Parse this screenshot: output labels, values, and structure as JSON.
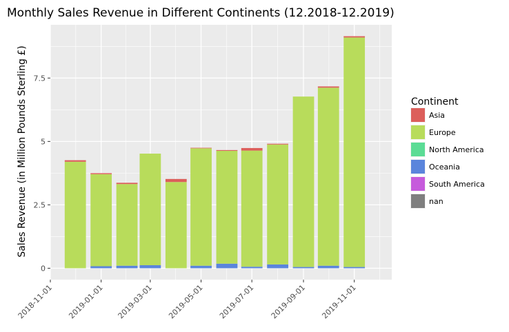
{
  "chart_data": {
    "type": "bar",
    "stacked": true,
    "title": "Monthly Sales Revenue in Different Continents (12.2018-12.2019)",
    "xlabel": "",
    "ylabel": "Sales Revenue (in Million Pounds Sterling £)",
    "y_ticks": [
      0,
      2.5,
      5,
      7.5
    ],
    "y_tick_labels": [
      "0",
      "2.5",
      "5",
      "7.5"
    ],
    "ylim": [
      -0.45,
      9.6
    ],
    "x_ticks": [
      "2018-11-01",
      "2019-01-01",
      "2019-03-01",
      "2019-05-01",
      "2019-07-01",
      "2019-09-01",
      "2019-11-01"
    ],
    "xlim": [
      "2018-11-01",
      "2019-12-16"
    ],
    "categories": [
      "2018-12-01",
      "2019-01-01",
      "2019-02-01",
      "2019-03-01",
      "2019-04-01",
      "2019-05-01",
      "2019-06-01",
      "2019-07-01",
      "2019-08-01",
      "2019-09-01",
      "2019-10-01",
      "2019-11-01"
    ],
    "series": [
      {
        "name": "Oceania",
        "color": "#5b85dc",
        "values": [
          0.0,
          0.08,
          0.1,
          0.12,
          0.0,
          0.1,
          0.18,
          0.06,
          0.15,
          0.05,
          0.1,
          0.05
        ]
      },
      {
        "name": "Europe",
        "color": "#b8dc5b",
        "values": [
          4.2,
          3.63,
          3.22,
          4.4,
          3.4,
          4.63,
          4.45,
          4.58,
          4.73,
          6.72,
          7.02,
          9.05
        ]
      },
      {
        "name": "North America",
        "color": "#5bdc95",
        "values": [
          0,
          0,
          0,
          0,
          0,
          0,
          0,
          0,
          0,
          0,
          0,
          0
        ]
      },
      {
        "name": "South America",
        "color": "#c65bdc",
        "values": [
          0,
          0,
          0,
          0,
          0,
          0,
          0,
          0,
          0,
          0,
          0,
          0
        ]
      },
      {
        "name": "nan",
        "color": "#7f7f7f",
        "values": [
          0,
          0,
          0,
          0,
          0,
          0,
          0,
          0,
          0,
          0,
          0,
          0
        ]
      },
      {
        "name": "Asia",
        "color": "#dc5f5b",
        "values": [
          0.06,
          0.04,
          0.05,
          0.0,
          0.12,
          0.02,
          0.03,
          0.1,
          0.03,
          0.0,
          0.05,
          0.05
        ]
      }
    ],
    "legend": {
      "title": "Continent",
      "position": "right",
      "entries": [
        {
          "label": "Asia",
          "color": "#dc5f5b"
        },
        {
          "label": "Europe",
          "color": "#b8dc5b"
        },
        {
          "label": "North America",
          "color": "#5bdc95"
        },
        {
          "label": "Oceania",
          "color": "#5b85dc"
        },
        {
          "label": "South America",
          "color": "#c65bdc"
        },
        {
          "label": "nan",
          "color": "#7f7f7f"
        }
      ]
    },
    "grid": true,
    "panel_background": "#ebebeb",
    "gridline_color": "#ffffff"
  }
}
